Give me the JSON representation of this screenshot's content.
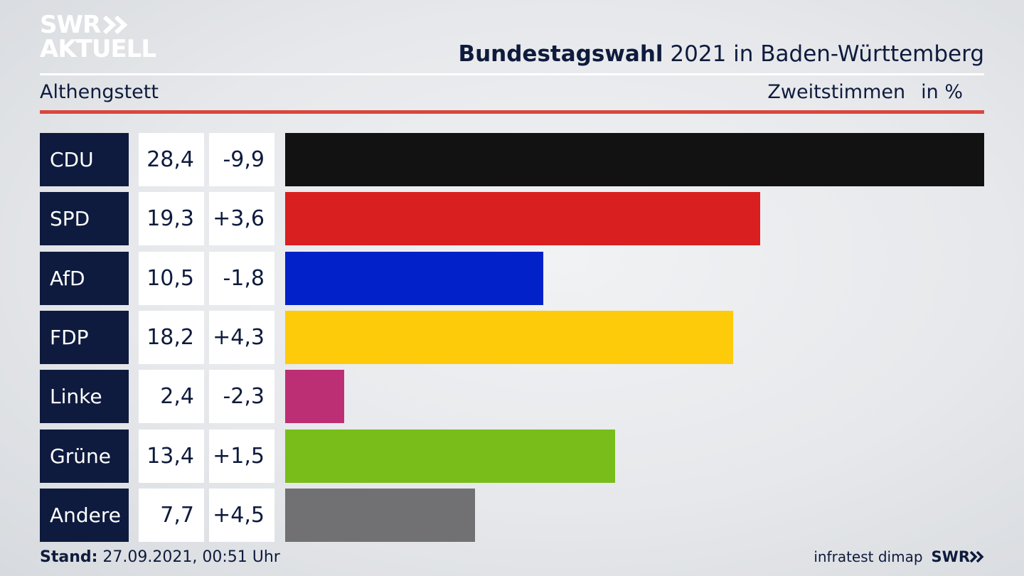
{
  "logo": {
    "line1": "SWR",
    "line2": "AKTUELL",
    "icon": "double-chevron-icon"
  },
  "header": {
    "title_bold": "Bundestagswahl",
    "title_rest": " 2021 in Baden-Württemberg",
    "subtitle": "Althengstett",
    "measure": "Zweitstimmen",
    "unit": "in %"
  },
  "chart_data": {
    "type": "bar",
    "orientation": "horizontal",
    "categories": [
      "CDU",
      "SPD",
      "AfD",
      "FDP",
      "Linke",
      "Grüne",
      "Andere"
    ],
    "values": [
      28.4,
      19.3,
      10.5,
      18.2,
      2.4,
      13.4,
      7.7
    ],
    "value_labels": [
      "28,4",
      "19,3",
      "10,5",
      "18,2",
      "2,4",
      "13,4",
      "7,7"
    ],
    "changes": [
      -9.9,
      3.6,
      -1.8,
      4.3,
      -2.3,
      1.5,
      4.5
    ],
    "change_labels": [
      "-9,9",
      "+3,6",
      "-1,8",
      "+4,3",
      "-2,3",
      "+1,5",
      "+4,5"
    ],
    "colors": [
      "#121212",
      "#d91f20",
      "#0221c9",
      "#fecb0a",
      "#bd2f74",
      "#78bd1a",
      "#717173"
    ],
    "xlim": [
      0,
      28.4
    ],
    "grid": false
  },
  "footer": {
    "stand_label": "Stand:",
    "stand_value": " 27.09.2021, 00:51 Uhr",
    "source": "infratest dimap",
    "brand": "SWR"
  }
}
